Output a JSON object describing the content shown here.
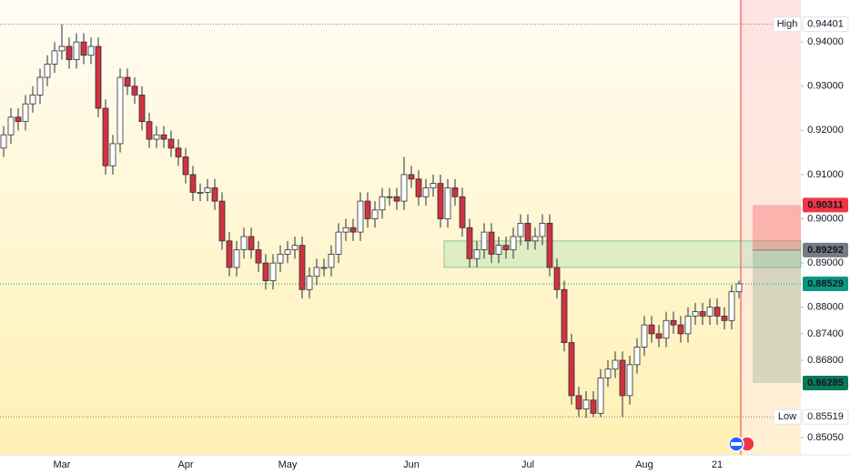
{
  "chart_data": {
    "type": "candlestick",
    "categories": [
      null,
      null,
      null,
      null,
      null,
      null,
      null,
      null,
      "Mar",
      null,
      null,
      null,
      null,
      null,
      null,
      null,
      null,
      null,
      null,
      null,
      null,
      null,
      null,
      null,
      null,
      "Apr",
      null,
      null,
      null,
      null,
      null,
      null,
      null,
      null,
      null,
      null,
      null,
      null,
      null,
      "May",
      null,
      null,
      null,
      null,
      null,
      null,
      null,
      null,
      null,
      null,
      null,
      null,
      null,
      null,
      null,
      null,
      "Jun",
      null,
      null,
      null,
      null,
      null,
      null,
      null,
      null,
      null,
      null,
      null,
      null,
      null,
      null,
      null,
      "Jul",
      null,
      null,
      null,
      null,
      null,
      null,
      null,
      null,
      null,
      null,
      null,
      null,
      null,
      null,
      null,
      "Aug",
      null,
      null,
      null,
      null,
      null,
      null,
      null,
      null,
      null,
      "21",
      null,
      null,
      null
    ],
    "open": [
      0.916,
      0.919,
      0.923,
      0.922,
      0.926,
      0.928,
      0.932,
      0.935,
      0.938,
      0.939,
      0.936,
      0.94,
      0.937,
      0.939,
      0.925,
      0.912,
      0.917,
      0.932,
      0.93,
      0.928,
      0.922,
      0.918,
      0.919,
      0.918,
      0.916,
      0.914,
      0.91,
      0.906,
      0.906,
      0.907,
      0.904,
      0.895,
      0.889,
      0.893,
      0.896,
      0.893,
      0.89,
      0.886,
      0.89,
      0.892,
      0.893,
      0.894,
      0.884,
      0.887,
      0.889,
      0.889,
      0.892,
      0.897,
      0.898,
      0.897,
      0.904,
      0.9,
      0.902,
      0.905,
      0.905,
      0.904,
      0.91,
      0.909,
      0.905,
      0.907,
      0.908,
      0.9,
      0.907,
      0.905,
      0.898,
      0.891,
      0.893,
      0.897,
      0.892,
      0.894,
      0.893,
      0.896,
      0.899,
      0.895,
      0.896,
      0.899,
      0.889,
      0.884,
      0.872,
      0.86,
      0.857,
      0.859,
      0.856,
      0.864,
      0.866,
      0.868,
      0.86,
      0.867,
      0.871,
      0.876,
      0.874,
      0.873,
      0.877,
      0.876,
      0.874,
      0.878,
      0.879,
      0.878,
      0.88,
      0.878,
      0.877,
      0.8835
    ],
    "high": [
      0.921,
      0.925,
      0.925,
      0.928,
      0.93,
      0.934,
      0.937,
      0.94,
      0.944,
      0.941,
      0.942,
      0.942,
      0.941,
      0.941,
      0.927,
      0.919,
      0.934,
      0.934,
      0.932,
      0.93,
      0.924,
      0.921,
      0.921,
      0.92,
      0.918,
      0.916,
      0.912,
      0.908,
      0.909,
      0.909,
      0.906,
      0.897,
      0.895,
      0.898,
      0.898,
      0.895,
      0.892,
      0.892,
      0.894,
      0.895,
      0.896,
      0.896,
      0.889,
      0.891,
      0.891,
      0.894,
      0.899,
      0.9,
      0.9,
      0.906,
      0.906,
      0.904,
      0.907,
      0.907,
      0.907,
      0.914,
      0.912,
      0.911,
      0.909,
      0.91,
      0.91,
      0.909,
      0.909,
      0.907,
      0.9,
      0.895,
      0.899,
      0.899,
      0.896,
      0.896,
      0.898,
      0.901,
      0.901,
      0.898,
      0.901,
      0.901,
      0.891,
      0.886,
      0.874,
      0.862,
      0.861,
      0.861,
      0.866,
      0.868,
      0.87,
      0.87,
      0.869,
      0.873,
      0.878,
      0.878,
      0.876,
      0.879,
      0.879,
      0.878,
      0.88,
      0.881,
      0.881,
      0.882,
      0.882,
      0.88,
      0.885,
      0.886
    ],
    "low": [
      0.914,
      0.917,
      0.92,
      0.92,
      0.924,
      0.926,
      0.93,
      0.933,
      0.936,
      0.934,
      0.934,
      0.935,
      0.935,
      0.923,
      0.91,
      0.91,
      0.915,
      0.928,
      0.926,
      0.92,
      0.916,
      0.916,
      0.916,
      0.914,
      0.912,
      0.908,
      0.904,
      0.904,
      0.904,
      0.902,
      0.893,
      0.887,
      0.887,
      0.891,
      0.891,
      0.888,
      0.884,
      0.884,
      0.888,
      0.89,
      0.891,
      0.882,
      0.882,
      0.885,
      0.887,
      0.887,
      0.89,
      0.895,
      0.895,
      0.895,
      0.898,
      0.898,
      0.9,
      0.903,
      0.902,
      0.902,
      0.907,
      0.903,
      0.903,
      0.905,
      0.898,
      0.898,
      0.903,
      0.896,
      0.889,
      0.889,
      0.891,
      0.89,
      0.89,
      0.891,
      0.891,
      0.894,
      0.893,
      0.893,
      0.894,
      0.887,
      0.882,
      0.87,
      0.858,
      0.8552,
      0.855,
      0.8552,
      0.8552,
      0.862,
      0.864,
      0.8552,
      0.858,
      0.865,
      0.869,
      0.872,
      0.871,
      0.871,
      0.874,
      0.872,
      0.872,
      0.876,
      0.876,
      0.876,
      0.876,
      0.875,
      0.875,
      0.882
    ],
    "close": [
      0.919,
      0.923,
      0.922,
      0.926,
      0.928,
      0.932,
      0.935,
      0.938,
      0.939,
      0.936,
      0.94,
      0.937,
      0.939,
      0.925,
      0.912,
      0.917,
      0.932,
      0.93,
      0.928,
      0.922,
      0.918,
      0.919,
      0.918,
      0.916,
      0.914,
      0.91,
      0.906,
      0.906,
      0.907,
      0.904,
      0.895,
      0.889,
      0.893,
      0.896,
      0.893,
      0.89,
      0.886,
      0.89,
      0.892,
      0.893,
      0.894,
      0.884,
      0.887,
      0.889,
      0.889,
      0.892,
      0.897,
      0.898,
      0.897,
      0.904,
      0.9,
      0.902,
      0.905,
      0.905,
      0.904,
      0.91,
      0.909,
      0.905,
      0.907,
      0.908,
      0.9,
      0.907,
      0.905,
      0.898,
      0.891,
      0.893,
      0.897,
      0.892,
      0.894,
      0.893,
      0.896,
      0.899,
      0.895,
      0.896,
      0.899,
      0.889,
      0.884,
      0.872,
      0.86,
      0.857,
      0.859,
      0.856,
      0.864,
      0.866,
      0.868,
      0.86,
      0.867,
      0.871,
      0.876,
      0.874,
      0.873,
      0.877,
      0.876,
      0.874,
      0.878,
      0.879,
      0.878,
      0.88,
      0.878,
      0.877,
      0.8835,
      0.8853
    ],
    "up_color": "#ffffff",
    "down_color": "#d1323f",
    "ylim": [
      0.8466,
      0.9495
    ],
    "yticks": [
      {
        "value": 0.94,
        "label": "0.94000"
      },
      {
        "value": 0.93,
        "label": "0.93000"
      },
      {
        "value": 0.92,
        "label": "0.92000"
      },
      {
        "value": 0.91,
        "label": "0.91000"
      },
      {
        "value": 0.9,
        "label": "0.90000"
      },
      {
        "value": 0.89,
        "label": "0.89000"
      },
      {
        "value": 0.88,
        "label": "0.88000"
      },
      {
        "value": 0.874,
        "label": "0.87400"
      },
      {
        "value": 0.868,
        "label": "0.86800"
      },
      {
        "value": 0.8505,
        "label": "0.85050"
      }
    ],
    "zone": {
      "from": 0.889,
      "to": 0.895,
      "color": "#7fd0a0"
    },
    "markers": [
      {
        "name": "High",
        "value": 0.94401,
        "color": "#ffffff"
      },
      {
        "value": 0.90311,
        "color": "#f23645"
      },
      {
        "value": 0.89292,
        "color": "#787b86"
      },
      {
        "value": 0.88529,
        "color": "#089981"
      },
      {
        "value": 0.86285,
        "color": "#0b7a5a"
      },
      {
        "name": "Low",
        "value": 0.85519,
        "color": "#ffffff"
      }
    ]
  }
}
